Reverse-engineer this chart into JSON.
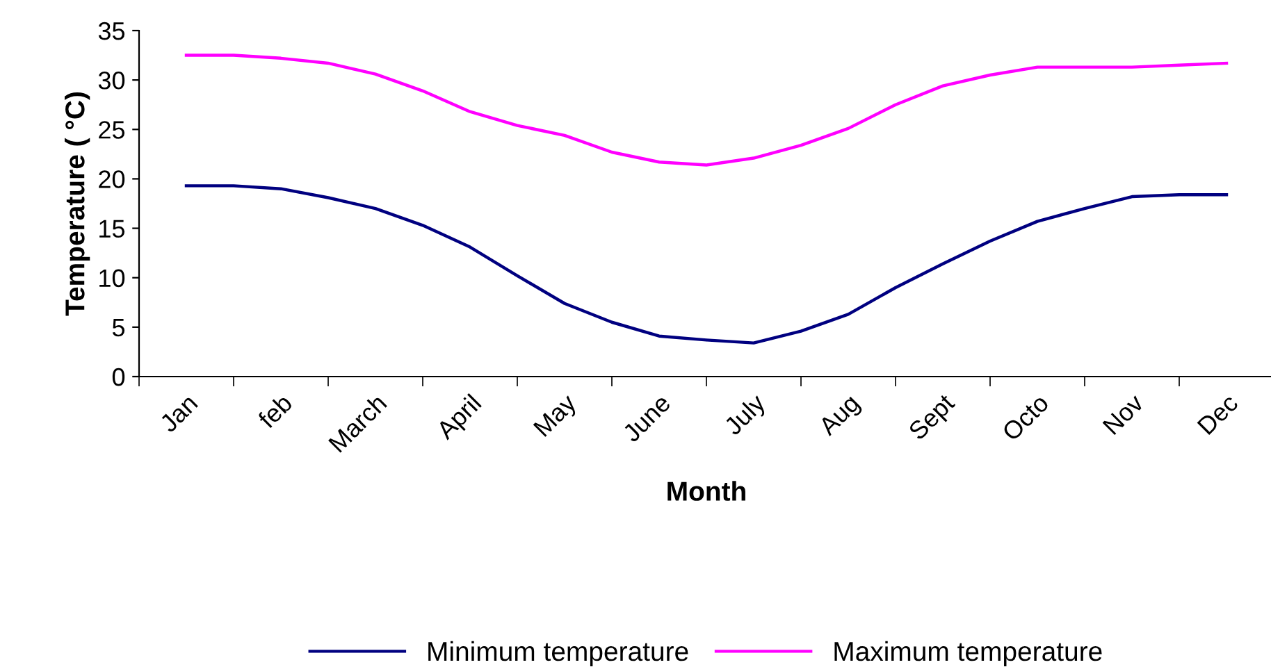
{
  "chart_data": {
    "type": "line",
    "xlabel": "Month",
    "ylabel": "Temperature ( °C)",
    "categories": [
      "Jan",
      null,
      "feb",
      null,
      "March",
      null,
      "April",
      null,
      "May",
      null,
      "June",
      null,
      "July",
      null,
      "Aug",
      null,
      "Sept",
      null,
      "Octo",
      null,
      "Nov",
      null,
      "Dec"
    ],
    "ylim": [
      0,
      35
    ],
    "yticks": [
      0,
      5,
      10,
      15,
      20,
      25,
      30,
      35
    ],
    "grid": false,
    "legend": "bottom",
    "marker": "none",
    "line_style": "solid",
    "series": [
      {
        "name": "Minimum temperature",
        "color": "#000080",
        "values": [
          19.3,
          19.3,
          19.0,
          18.1,
          17.0,
          15.3,
          13.1,
          10.2,
          7.4,
          5.5,
          4.1,
          3.7,
          3.4,
          4.6,
          6.3,
          9.0,
          11.4,
          13.7,
          15.7,
          17.0,
          18.2,
          18.4,
          18.4
        ]
      },
      {
        "name": "Maximum temperature",
        "color": "#ff00ff",
        "values": [
          32.5,
          32.5,
          32.2,
          31.7,
          30.6,
          28.9,
          26.8,
          25.4,
          24.4,
          22.7,
          21.7,
          21.4,
          22.1,
          23.4,
          25.1,
          27.5,
          29.4,
          30.5,
          31.3,
          31.3,
          31.3,
          31.5,
          31.7
        ]
      }
    ]
  }
}
